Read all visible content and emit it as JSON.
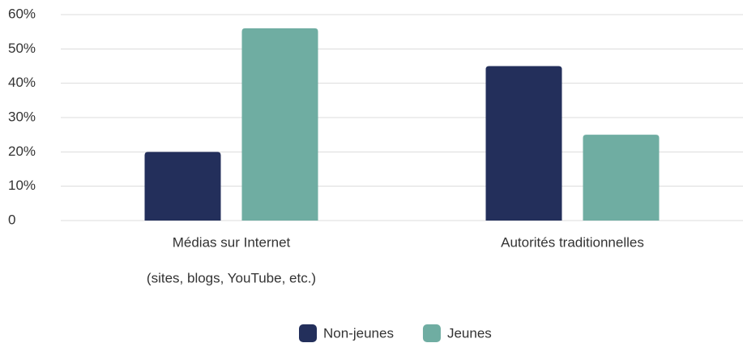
{
  "chart_data": {
    "type": "bar",
    "categories": [
      [
        "Médias sur Internet",
        "(sites, blogs, YouTube, etc.)"
      ],
      [
        "Autorités traditionnelles"
      ]
    ],
    "series": [
      {
        "name": "Non-jeunes",
        "color": "#232f5b",
        "values": [
          20,
          45
        ]
      },
      {
        "name": "Jeunes",
        "color": "#6fada2",
        "values": [
          56,
          25
        ]
      }
    ],
    "ylim": [
      0,
      60
    ],
    "yticks": [
      0,
      {
        "value": 10,
        "label": "10%"
      },
      {
        "value": 20,
        "label": "20%"
      },
      {
        "value": 30,
        "label": "30%"
      },
      {
        "value": 40,
        "label": "40%"
      },
      {
        "value": 50,
        "label": "50%"
      },
      {
        "value": 60,
        "label": "60%"
      }
    ],
    "grid": true,
    "legend": "bottom"
  }
}
